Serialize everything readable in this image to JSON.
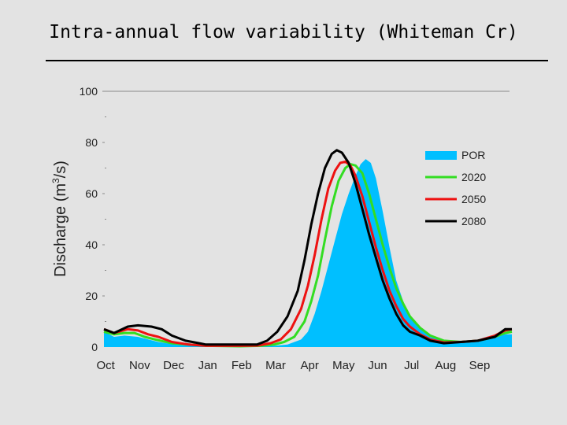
{
  "slide": {
    "title": "Intra-annual flow variability (Whiteman Cr)"
  },
  "chart_data": {
    "type": "area",
    "title": "",
    "xlabel": "",
    "ylabel_main": "Discharge (m",
    "ylabel_sup": "3",
    "ylabel_tail": "/s)",
    "ylim": [
      0,
      100
    ],
    "yticks": [
      0,
      20,
      40,
      60,
      80,
      100
    ],
    "xlim": [
      0,
      12
    ],
    "months": [
      "Oct",
      "Nov",
      "Dec",
      "Jan",
      "Feb",
      "Mar",
      "Apr",
      "May",
      "Jun",
      "Jul",
      "Aug",
      "Sep"
    ],
    "legend_position": "right",
    "grid": false,
    "series": [
      {
        "name": "POR",
        "kind": "area",
        "color": "#00bfff",
        "points": [
          [
            0,
            6
          ],
          [
            0.3,
            4
          ],
          [
            0.6,
            4.5
          ],
          [
            1,
            4
          ],
          [
            1.3,
            3
          ],
          [
            1.6,
            2
          ],
          [
            2,
            1.2
          ],
          [
            2.5,
            0.8
          ],
          [
            3,
            0.5
          ],
          [
            4,
            0.3
          ],
          [
            4.6,
            0.3
          ],
          [
            5,
            0.5
          ],
          [
            5.4,
            1
          ],
          [
            5.8,
            3
          ],
          [
            6,
            6
          ],
          [
            6.2,
            13
          ],
          [
            6.4,
            22
          ],
          [
            6.6,
            32
          ],
          [
            6.8,
            42
          ],
          [
            7,
            52
          ],
          [
            7.2,
            60
          ],
          [
            7.4,
            67
          ],
          [
            7.55,
            71.5
          ],
          [
            7.7,
            73.5
          ],
          [
            7.85,
            72
          ],
          [
            8,
            66
          ],
          [
            8.2,
            53
          ],
          [
            8.4,
            39
          ],
          [
            8.6,
            26
          ],
          [
            8.8,
            18
          ],
          [
            9,
            12
          ],
          [
            9.3,
            7
          ],
          [
            9.6,
            4
          ],
          [
            10,
            2.2
          ],
          [
            10.5,
            2
          ],
          [
            11,
            2.5
          ],
          [
            11.5,
            4
          ],
          [
            11.8,
            5
          ],
          [
            12,
            5
          ]
        ]
      },
      {
        "name": "2020",
        "kind": "line",
        "color": "#33dd22",
        "points": [
          [
            0,
            6
          ],
          [
            0.3,
            5
          ],
          [
            0.6,
            5.5
          ],
          [
            0.9,
            5.5
          ],
          [
            1.2,
            4
          ],
          [
            1.5,
            3
          ],
          [
            2,
            1.5
          ],
          [
            2.5,
            1
          ],
          [
            3,
            0.5
          ],
          [
            4,
            0.3
          ],
          [
            4.6,
            0.5
          ],
          [
            5,
            1
          ],
          [
            5.3,
            2
          ],
          [
            5.6,
            4
          ],
          [
            5.9,
            10
          ],
          [
            6.1,
            18
          ],
          [
            6.3,
            28
          ],
          [
            6.5,
            42
          ],
          [
            6.7,
            55
          ],
          [
            6.9,
            65
          ],
          [
            7.1,
            70
          ],
          [
            7.25,
            71.5
          ],
          [
            7.4,
            71
          ],
          [
            7.6,
            68
          ],
          [
            7.8,
            60
          ],
          [
            8,
            50
          ],
          [
            8.2,
            40
          ],
          [
            8.4,
            31
          ],
          [
            8.6,
            23
          ],
          [
            8.8,
            17
          ],
          [
            9,
            12
          ],
          [
            9.3,
            7.5
          ],
          [
            9.6,
            4.5
          ],
          [
            10,
            2.5
          ],
          [
            10.5,
            2
          ],
          [
            11,
            2.5
          ],
          [
            11.5,
            4
          ],
          [
            11.8,
            5.5
          ],
          [
            12,
            6
          ]
        ]
      },
      {
        "name": "2050",
        "kind": "line",
        "color": "#ee1111",
        "points": [
          [
            0,
            7
          ],
          [
            0.3,
            5.5
          ],
          [
            0.7,
            7
          ],
          [
            1,
            6.5
          ],
          [
            1.3,
            5
          ],
          [
            1.6,
            4
          ],
          [
            2,
            2
          ],
          [
            2.5,
            1
          ],
          [
            3,
            0.5
          ],
          [
            4,
            0.5
          ],
          [
            4.5,
            0.6
          ],
          [
            4.9,
            1.5
          ],
          [
            5.2,
            3
          ],
          [
            5.5,
            7
          ],
          [
            5.8,
            15
          ],
          [
            6,
            24
          ],
          [
            6.2,
            36
          ],
          [
            6.4,
            50
          ],
          [
            6.6,
            62
          ],
          [
            6.8,
            69
          ],
          [
            6.95,
            72
          ],
          [
            7.1,
            72.5
          ],
          [
            7.25,
            71
          ],
          [
            7.4,
            67
          ],
          [
            7.6,
            59
          ],
          [
            7.8,
            49
          ],
          [
            8,
            39
          ],
          [
            8.2,
            30
          ],
          [
            8.4,
            22
          ],
          [
            8.6,
            16
          ],
          [
            8.8,
            11
          ],
          [
            9,
            8
          ],
          [
            9.3,
            5
          ],
          [
            9.6,
            3
          ],
          [
            10,
            1.8
          ],
          [
            10.5,
            2
          ],
          [
            11,
            2.5
          ],
          [
            11.5,
            4.5
          ],
          [
            11.8,
            6.5
          ],
          [
            12,
            7
          ]
        ]
      },
      {
        "name": "2080",
        "kind": "line",
        "color": "#000000",
        "points": [
          [
            0,
            7
          ],
          [
            0.3,
            5.5
          ],
          [
            0.7,
            8
          ],
          [
            1,
            8.5
          ],
          [
            1.4,
            8
          ],
          [
            1.7,
            7
          ],
          [
            2,
            4.5
          ],
          [
            2.4,
            2.5
          ],
          [
            2.8,
            1.5
          ],
          [
            3,
            1
          ],
          [
            4,
            1
          ],
          [
            4.5,
            1
          ],
          [
            4.8,
            2.5
          ],
          [
            5.1,
            6
          ],
          [
            5.4,
            12
          ],
          [
            5.7,
            22
          ],
          [
            5.9,
            34
          ],
          [
            6.1,
            48
          ],
          [
            6.3,
            60
          ],
          [
            6.5,
            70
          ],
          [
            6.7,
            75.5
          ],
          [
            6.85,
            77
          ],
          [
            7,
            76
          ],
          [
            7.2,
            72
          ],
          [
            7.4,
            64
          ],
          [
            7.6,
            54
          ],
          [
            7.8,
            44
          ],
          [
            8,
            35
          ],
          [
            8.2,
            26
          ],
          [
            8.4,
            19
          ],
          [
            8.6,
            13
          ],
          [
            8.8,
            8.5
          ],
          [
            9,
            6
          ],
          [
            9.3,
            4.5
          ],
          [
            9.6,
            2.5
          ],
          [
            10,
            1.5
          ],
          [
            10.5,
            2
          ],
          [
            11,
            2.5
          ],
          [
            11.5,
            4
          ],
          [
            11.8,
            7
          ],
          [
            12,
            7
          ]
        ]
      }
    ]
  }
}
